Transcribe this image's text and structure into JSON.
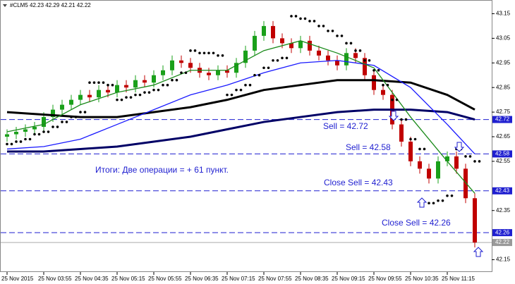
{
  "chart_data": {
    "type": "candlestick",
    "title": "#CLM5  42.23 42.29 42.21 42.22",
    "categories": [
      "25 Nov 2015",
      null,
      null,
      null,
      "25 Nov 03:55",
      null,
      null,
      null,
      "25 Nov 04:35",
      null,
      null,
      null,
      "25 Nov 05:15",
      null,
      null,
      null,
      "25 Nov 05:55",
      null,
      null,
      null,
      "25 Nov 06:35",
      null,
      null,
      null,
      "25 Nov 07:15",
      null,
      null,
      null,
      "25 Nov 07:55",
      null,
      null,
      null,
      "25 Nov 08:35",
      null,
      null,
      null,
      "25 Nov 09:15",
      null,
      null,
      null,
      "25 Nov 09:55",
      null,
      null,
      null,
      "25 Nov 10:35",
      null,
      null,
      null,
      "25 Nov 11:15",
      null,
      null,
      null
    ],
    "open": [
      42.65,
      42.66,
      42.67,
      42.68,
      42.69,
      42.73,
      42.76,
      42.78,
      42.8,
      42.82,
      42.81,
      42.84,
      42.83,
      42.86,
      42.85,
      42.88,
      42.87,
      42.9,
      42.92,
      42.96,
      42.95,
      42.93,
      42.91,
      42.9,
      42.92,
      42.91,
      42.95,
      43.0,
      43.06,
      43.1,
      43.05,
      43.03,
      43.01,
      43.04,
      43.0,
      42.98,
      42.96,
      42.94,
      42.99,
      42.97,
      42.9,
      42.84,
      42.82,
      42.7,
      42.63,
      42.55,
      42.52,
      42.48,
      42.55,
      42.57,
      42.52,
      42.4
    ],
    "high": [
      42.68,
      42.69,
      42.7,
      42.71,
      42.75,
      42.78,
      42.8,
      42.82,
      42.84,
      42.84,
      42.86,
      42.86,
      42.88,
      42.88,
      42.9,
      42.9,
      42.92,
      42.94,
      42.98,
      42.98,
      42.97,
      42.95,
      42.93,
      42.94,
      42.94,
      42.97,
      43.02,
      43.08,
      43.12,
      43.12,
      43.07,
      43.05,
      43.06,
      43.06,
      43.02,
      43.0,
      42.98,
      43.01,
      43.01,
      42.99,
      42.92,
      42.86,
      42.84,
      42.72,
      42.65,
      42.57,
      42.54,
      42.57,
      42.59,
      42.59,
      42.54,
      42.42
    ],
    "low": [
      42.63,
      42.64,
      42.65,
      42.66,
      42.67,
      42.71,
      42.74,
      42.76,
      42.78,
      42.79,
      42.79,
      42.81,
      42.81,
      42.83,
      42.83,
      42.85,
      42.85,
      42.88,
      42.9,
      42.93,
      42.91,
      42.89,
      42.88,
      42.88,
      42.89,
      42.89,
      42.93,
      42.98,
      43.04,
      43.03,
      43.01,
      42.99,
      42.99,
      42.98,
      42.96,
      42.94,
      42.92,
      42.92,
      42.95,
      42.88,
      42.82,
      42.8,
      42.68,
      42.61,
      42.53,
      42.5,
      42.46,
      42.46,
      42.53,
      42.5,
      42.38,
      42.2
    ],
    "close": [
      42.66,
      42.67,
      42.68,
      42.69,
      42.73,
      42.76,
      42.78,
      42.8,
      42.82,
      42.81,
      42.84,
      42.83,
      42.86,
      42.85,
      42.88,
      42.87,
      42.9,
      42.92,
      42.96,
      42.95,
      42.93,
      42.91,
      42.9,
      42.92,
      42.91,
      42.95,
      43.0,
      43.06,
      43.1,
      43.05,
      43.03,
      43.01,
      43.04,
      43.0,
      42.98,
      42.96,
      42.94,
      42.99,
      42.97,
      42.9,
      42.84,
      42.82,
      42.7,
      42.63,
      42.55,
      42.52,
      42.48,
      42.55,
      42.57,
      42.52,
      42.4,
      42.22
    ],
    "up_color": "#1aa01a",
    "down_color": "#c00000",
    "lines": [
      {
        "color": "#000066",
        "width": 3,
        "x": [
          0,
          4,
          8,
          12,
          16,
          20,
          24,
          28,
          32,
          36,
          40,
          44,
          48,
          51
        ],
        "values": [
          42.59,
          42.59,
          42.6,
          42.61,
          42.63,
          42.65,
          42.68,
          42.71,
          42.73,
          42.75,
          42.76,
          42.76,
          42.75,
          42.72
        ]
      },
      {
        "color": "#000000",
        "width": 3,
        "x": [
          0,
          4,
          8,
          12,
          16,
          20,
          24,
          28,
          32,
          36,
          40,
          44,
          48,
          51
        ],
        "values": [
          42.75,
          42.74,
          42.73,
          42.73,
          42.75,
          42.77,
          42.8,
          42.84,
          42.86,
          42.88,
          42.88,
          42.87,
          42.82,
          42.76
        ]
      },
      {
        "color": "#1a1aff",
        "width": 1.3,
        "x": [
          0,
          4,
          8,
          12,
          16,
          20,
          24,
          28,
          32,
          36,
          40,
          44,
          48,
          51
        ],
        "values": [
          42.6,
          42.61,
          42.64,
          42.7,
          42.76,
          42.82,
          42.86,
          42.91,
          42.95,
          42.96,
          42.94,
          42.85,
          42.7,
          42.58
        ]
      },
      {
        "color": "#1a8a1a",
        "width": 1.3,
        "x": [
          0,
          4,
          8,
          12,
          16,
          20,
          24,
          28,
          32,
          36,
          40,
          44,
          48,
          51
        ],
        "values": [
          42.67,
          42.7,
          42.78,
          42.83,
          42.86,
          42.92,
          42.92,
          43.0,
          43.04,
          42.99,
          42.93,
          42.73,
          42.55,
          42.42
        ]
      }
    ],
    "sar": {
      "color": "#000000",
      "values": [
        42.62,
        42.63,
        42.64,
        42.66,
        42.67,
        42.69,
        42.71,
        42.73,
        42.75,
        42.87,
        42.87,
        42.86,
        42.8,
        42.81,
        42.82,
        42.83,
        42.84,
        42.86,
        42.88,
        42.91,
        43.0,
        42.99,
        42.99,
        42.98,
        42.82,
        42.84,
        42.86,
        42.9,
        42.93,
        42.96,
        42.97,
        43.14,
        43.13,
        43.12,
        43.1,
        43.08,
        43.06,
        43.03,
        43.0,
        42.96,
        42.92,
        42.86,
        42.8,
        42.72,
        42.64,
        42.6,
        42.38,
        42.39,
        42.41,
        42.6,
        42.57,
        42.55
      ]
    },
    "ylim": [
      42.1,
      43.2
    ],
    "yticks": [
      43.15,
      43.05,
      42.95,
      42.85,
      42.75,
      42.65,
      42.55,
      42.35,
      42.15
    ],
    "levels": [
      42.72,
      42.58,
      42.43,
      42.26
    ],
    "level_color": "#1f1fd0",
    "current_price": 42.22,
    "annotations": [
      "Sell = 42.72",
      "Sell = 42.58",
      "Close Sell = 42.43",
      "Close Sell = 42.26",
      "Итоги: Две операции = + 61 пункт."
    ]
  }
}
